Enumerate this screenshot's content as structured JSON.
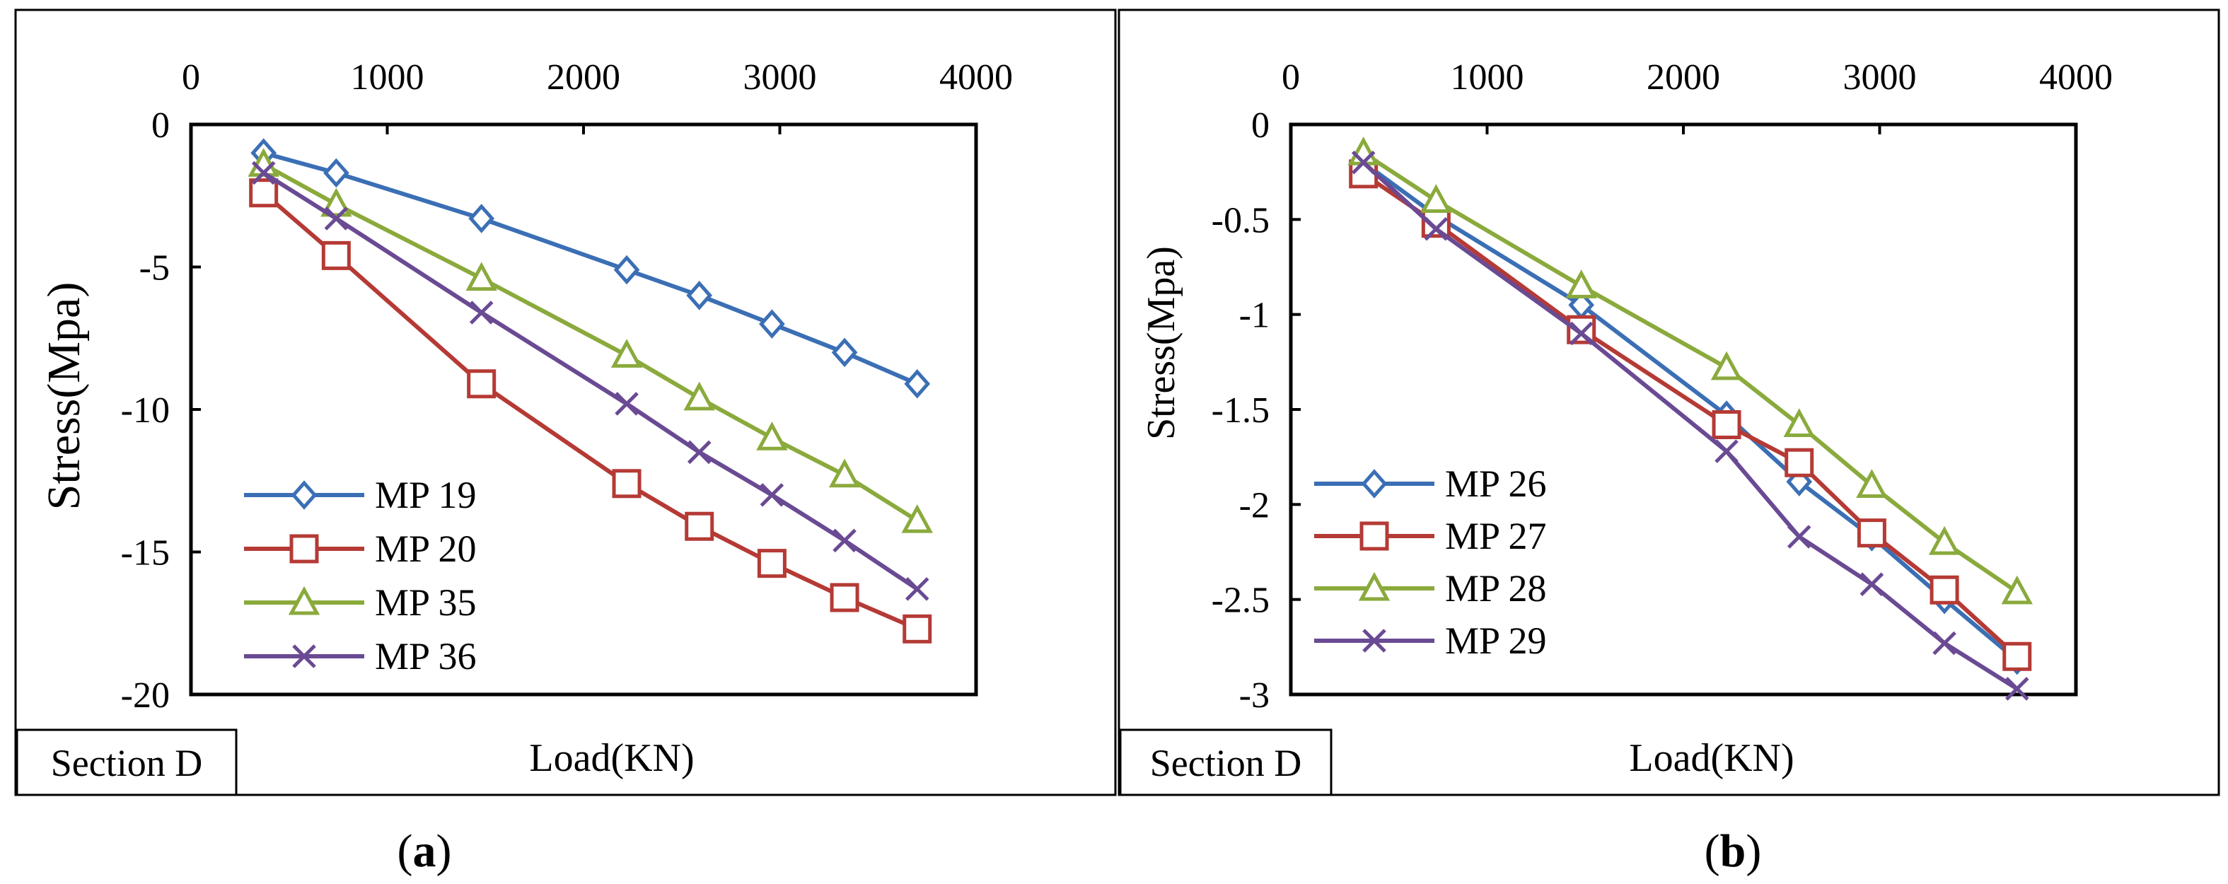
{
  "chart_data": [
    {
      "type": "line",
      "panel_label": "a",
      "section_label": "Section D",
      "xlabel": "Load(KN)",
      "ylabel": "Stress(Mpa)",
      "xlim": [
        0,
        4000
      ],
      "ylim": [
        -20,
        0
      ],
      "xticks": [
        0,
        1000,
        2000,
        3000,
        4000
      ],
      "yticks": [
        0,
        -5,
        -10,
        -15,
        -20
      ],
      "x_axis_position": "top",
      "legend_position": "bottom-left",
      "series": [
        {
          "name": "MP 19",
          "color": "#3b6fb5",
          "marker": "diamond",
          "x": [
            370,
            740,
            1480,
            2220,
            2590,
            2960,
            3330,
            3700
          ],
          "y": [
            -1.0,
            -1.7,
            -3.3,
            -5.1,
            -6.0,
            -7.0,
            -8.0,
            -9.1
          ]
        },
        {
          "name": "MP 20",
          "color": "#b53a35",
          "marker": "square",
          "x": [
            370,
            740,
            1480,
            2220,
            2590,
            2960,
            3330,
            3700
          ],
          "y": [
            -2.4,
            -4.6,
            -9.1,
            -12.6,
            -14.1,
            -15.4,
            -16.6,
            -17.7
          ]
        },
        {
          "name": "MP 35",
          "color": "#8aaa3c",
          "marker": "triangle",
          "x": [
            370,
            740,
            1480,
            2220,
            2590,
            2960,
            3330,
            3700
          ],
          "y": [
            -1.4,
            -2.8,
            -5.4,
            -8.1,
            -9.6,
            -11.0,
            -12.3,
            -13.9
          ]
        },
        {
          "name": "MP 36",
          "color": "#6a4a93",
          "marker": "x",
          "x": [
            370,
            740,
            1480,
            2220,
            2590,
            2960,
            3330,
            3700
          ],
          "y": [
            -1.7,
            -3.3,
            -6.6,
            -9.8,
            -11.5,
            -13.0,
            -14.6,
            -16.3
          ]
        }
      ]
    },
    {
      "type": "line",
      "panel_label": "b",
      "section_label": "Section D",
      "xlabel": "Load(KN)",
      "ylabel": "Stress(Mpa)",
      "xlim": [
        0,
        4000
      ],
      "ylim": [
        -3,
        0
      ],
      "xticks": [
        0,
        1000,
        2000,
        3000,
        4000
      ],
      "yticks": [
        0,
        -0.5,
        -1,
        -1.5,
        -2,
        -2.5,
        -3
      ],
      "x_axis_position": "top",
      "legend_position": "bottom-left",
      "series": [
        {
          "name": "MP 26",
          "color": "#3b6fb5",
          "marker": "diamond",
          "x": [
            370,
            740,
            1480,
            2220,
            2590,
            2960,
            3330,
            3700
          ],
          "y": [
            -0.2,
            -0.48,
            -0.95,
            -1.53,
            -1.88,
            -2.17,
            -2.5,
            -2.82
          ]
        },
        {
          "name": "MP 27",
          "color": "#b53a35",
          "marker": "square",
          "x": [
            370,
            740,
            1480,
            2220,
            2590,
            2960,
            3330,
            3700
          ],
          "y": [
            -0.26,
            -0.52,
            -1.08,
            -1.58,
            -1.78,
            -2.15,
            -2.45,
            -2.8
          ]
        },
        {
          "name": "MP 28",
          "color": "#8aaa3c",
          "marker": "triangle",
          "x": [
            370,
            740,
            1480,
            2220,
            2590,
            2960,
            3330,
            3700
          ],
          "y": [
            -0.15,
            -0.4,
            -0.85,
            -1.28,
            -1.58,
            -1.9,
            -2.2,
            -2.46
          ]
        },
        {
          "name": "MP 29",
          "color": "#6a4a93",
          "marker": "x",
          "x": [
            370,
            740,
            1480,
            2220,
            2590,
            2960,
            3330,
            3700
          ],
          "y": [
            -0.2,
            -0.55,
            -1.1,
            -1.72,
            -2.17,
            -2.42,
            -2.73,
            -2.97
          ]
        }
      ]
    }
  ]
}
